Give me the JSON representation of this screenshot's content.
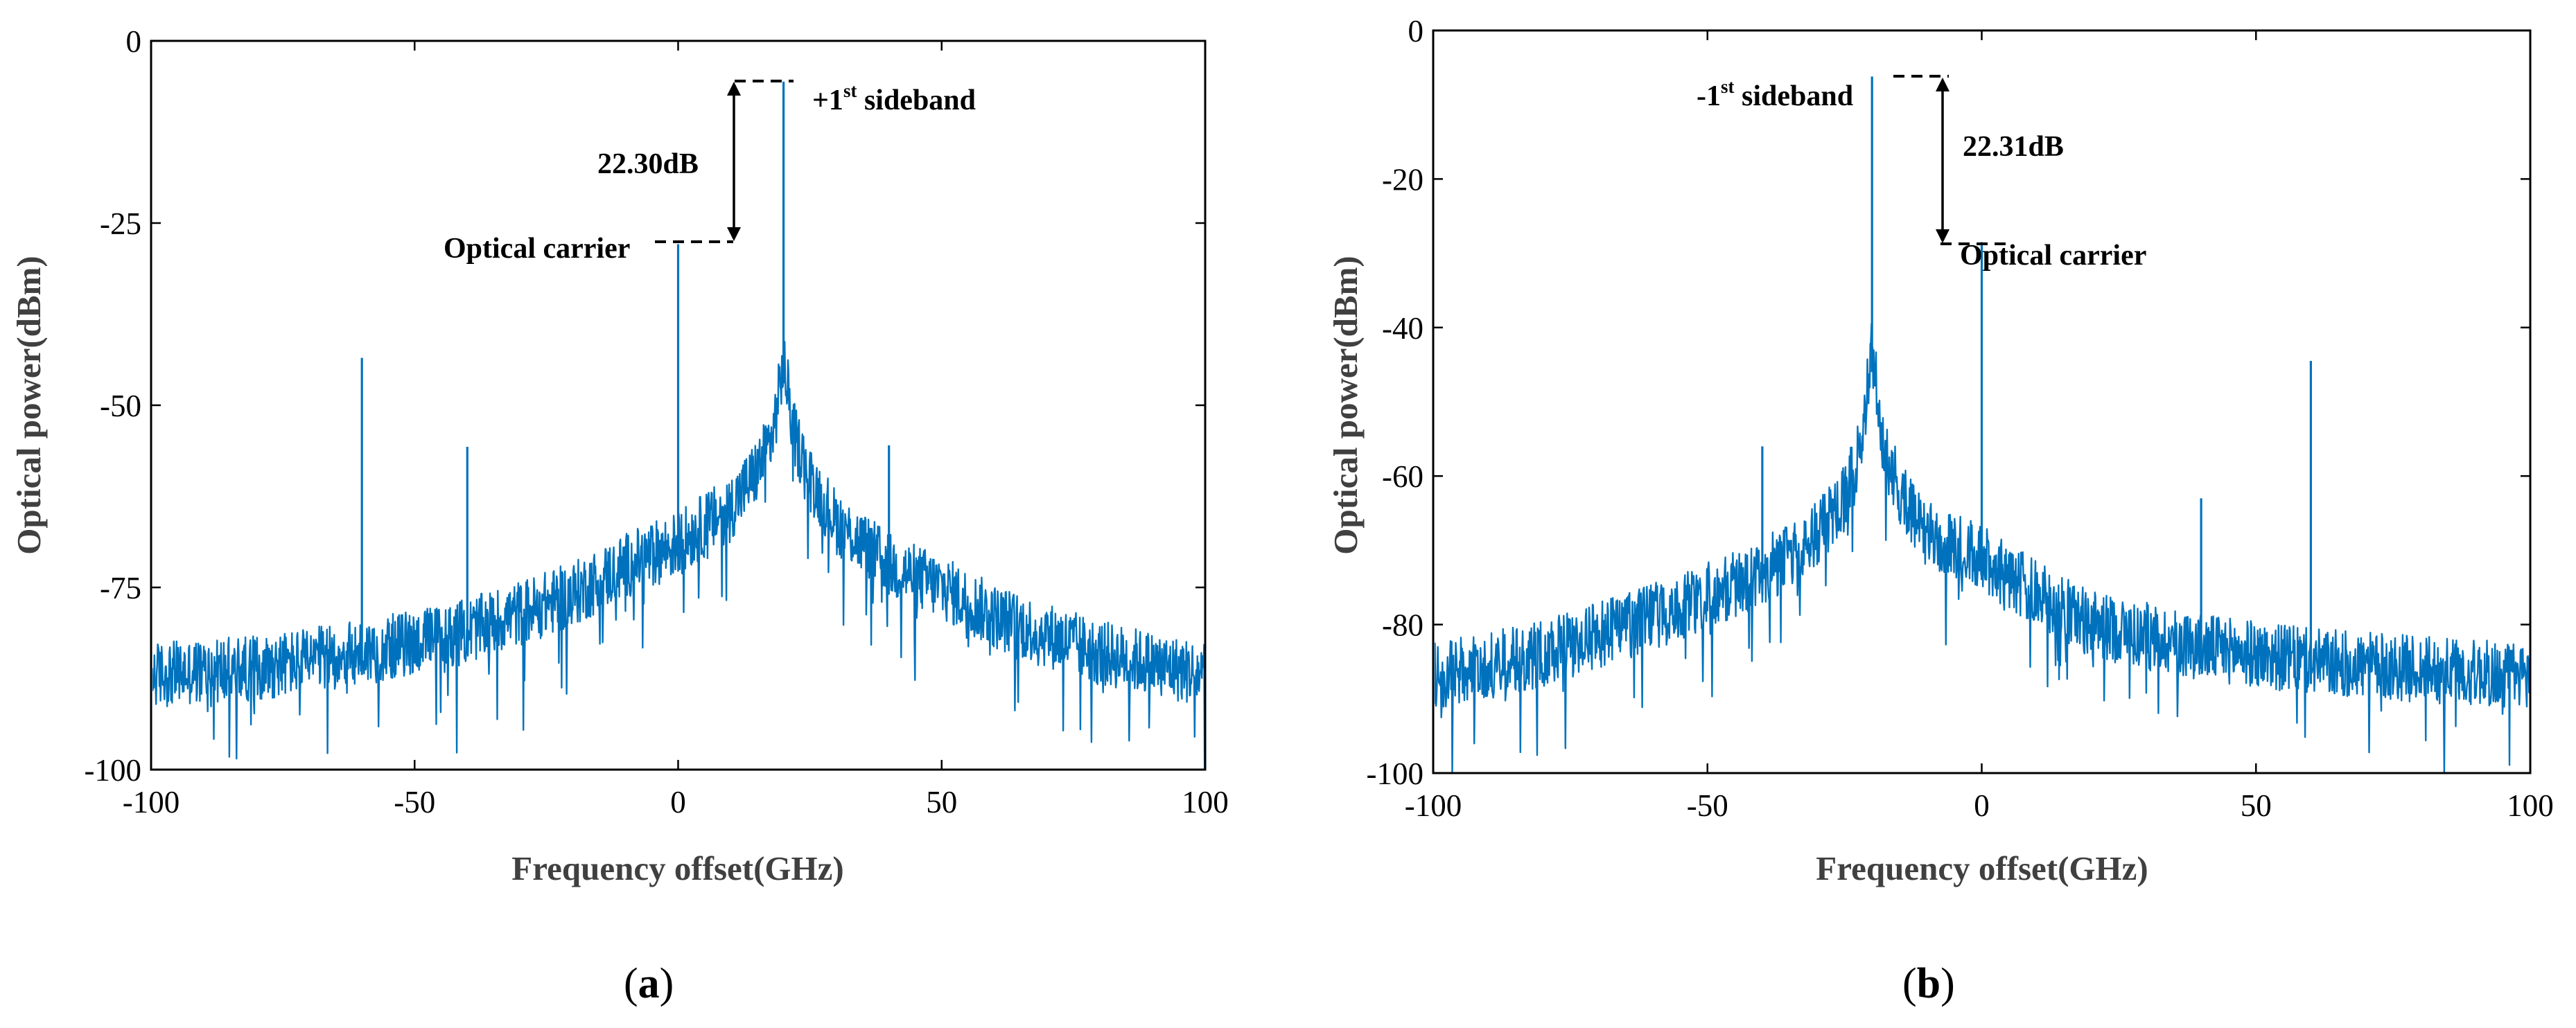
{
  "colors": {
    "trace": "#0072BD",
    "axis": "#000000",
    "annotation": "#000000"
  },
  "chart_data": [
    {
      "type": "line",
      "panel_label": "a",
      "xlabel": "Frequency offset(GHz)",
      "ylabel": "Optical power(dBm)",
      "xlim": [
        -100,
        100
      ],
      "ylim": [
        -100,
        0
      ],
      "xticks": [
        -100,
        -50,
        0,
        50,
        100
      ],
      "yticks": [
        -100,
        -75,
        -50,
        -25,
        0
      ],
      "series": [
        {
          "name": "spectrum",
          "noise_profile": {
            "x": [
              -100,
              -80,
              -60,
              -40,
              -20,
              -10,
              0,
              10,
              15,
              18,
              20,
              22,
              25,
              30,
              40,
              50,
              60,
              80,
              100
            ],
            "y": [
              -87,
              -86,
              -84,
              -81,
              -76,
              -72,
              -69,
              -64,
              -59,
              -54,
              -44,
              -54,
              -60,
              -66,
              -72,
              -75,
              -79,
              -84,
              -87
            ]
          },
          "peaks": [
            {
              "x": 20,
              "y": -5.6
            },
            {
              "x": 0,
              "y": -27.9
            },
            {
              "x": -60,
              "y": -43.5
            },
            {
              "x": -40,
              "y": -55.7
            },
            {
              "x": 40,
              "y": -55.5
            }
          ]
        }
      ],
      "annotations": {
        "sideband": {
          "prefix": "+1",
          "sup": "st",
          "suffix": " sideband",
          "x": 20,
          "y": -5.6
        },
        "carrier": {
          "label": "Optical carrier",
          "x": 0,
          "y": -27.9
        },
        "difference": {
          "label": "22.30dB"
        }
      }
    },
    {
      "type": "line",
      "panel_label": "b",
      "xlabel": "Frequency offset(GHz)",
      "ylabel": "Optical power(dBm)",
      "xlim": [
        -100,
        100
      ],
      "ylim": [
        -100,
        0
      ],
      "xticks": [
        -100,
        -50,
        0,
        50,
        100
      ],
      "yticks": [
        -100,
        -80,
        -60,
        -40,
        -20,
        0
      ],
      "series": [
        {
          "name": "spectrum",
          "noise_profile": {
            "x": [
              -100,
              -80,
              -60,
              -50,
              -40,
              -30,
              -25,
              -22,
              -20,
              -18,
              -15,
              -10,
              0,
              10,
              20,
              40,
              60,
              80,
              100
            ],
            "y": [
              -87,
              -84,
              -79,
              -76,
              -73,
              -68,
              -63,
              -56,
              -43,
              -56,
              -62,
              -68,
              -71,
              -76,
              -80,
              -83,
              -85,
              -86,
              -87
            ]
          },
          "peaks": [
            {
              "x": -20,
              "y": -6.2
            },
            {
              "x": 0,
              "y": -28.5
            },
            {
              "x": 60,
              "y": -44.5
            },
            {
              "x": -40,
              "y": -56.0
            },
            {
              "x": 40,
              "y": -63.0
            }
          ]
        }
      ],
      "annotations": {
        "sideband": {
          "prefix": "-1",
          "sup": "st",
          "suffix": " sideband",
          "x": -20,
          "y": -6.2
        },
        "carrier": {
          "label": "Optical carrier",
          "x": 0,
          "y": -28.5
        },
        "difference": {
          "label": "22.31dB"
        }
      }
    }
  ]
}
